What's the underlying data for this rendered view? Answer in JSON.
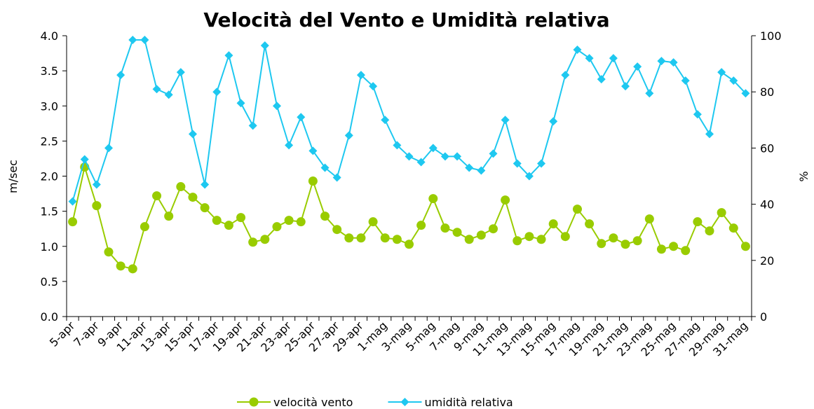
{
  "chart_data": {
    "type": "line",
    "title": "Velocità del Vento e Umidità relativa",
    "y_label": "m/sec",
    "y2_label": "%",
    "categories": [
      "5-apr",
      null,
      "7-apr",
      null,
      "9-apr",
      null,
      "11-apr",
      null,
      "13-apr",
      null,
      "15-apr",
      null,
      "17-apr",
      null,
      "19-apr",
      null,
      "21-apr",
      null,
      "23-apr",
      null,
      "25-apr",
      null,
      "27-apr",
      null,
      "29-apr",
      null,
      "1-mag",
      null,
      "3-mag",
      null,
      "5-mag",
      null,
      "7-mag",
      null,
      "9-mag",
      null,
      "11-mag",
      null,
      "13-mag",
      null,
      "15-mag",
      null,
      "17-mag",
      null,
      "19-mag",
      null,
      "21-mag",
      null,
      "23-mag",
      null,
      "25-mag",
      null,
      "27-mag",
      null,
      "29-mag",
      null,
      "31-mag"
    ],
    "series": [
      {
        "name": "velocità vento",
        "color": "#99cc00",
        "marker": "circle",
        "axis": "y",
        "values": [
          1.35,
          2.13,
          1.58,
          0.92,
          0.72,
          0.68,
          1.28,
          1.72,
          1.43,
          1.85,
          1.7,
          1.55,
          1.37,
          1.3,
          1.41,
          1.06,
          1.1,
          1.28,
          1.37,
          1.35,
          1.93,
          1.43,
          1.24,
          1.12,
          1.12,
          1.35,
          1.12,
          1.1,
          1.03,
          1.3,
          1.68,
          1.26,
          1.2,
          1.1,
          1.16,
          1.25,
          1.66,
          1.08,
          1.14,
          1.1,
          1.32,
          1.14,
          1.53,
          1.32,
          1.04,
          1.12,
          1.03,
          1.08,
          1.39,
          0.96,
          1.0,
          0.94,
          1.35,
          1.22,
          1.48,
          1.26,
          1.0
        ]
      },
      {
        "name": "umidità relativa",
        "color": "#1ec8f0",
        "marker": "diamond",
        "axis": "y2",
        "values": [
          41,
          56,
          47,
          60,
          86,
          98.5,
          98.5,
          81,
          79,
          87,
          65,
          47,
          80,
          93,
          76,
          68,
          96.5,
          75,
          61,
          71,
          59,
          53,
          49.5,
          64.5,
          86,
          82,
          70,
          61,
          57,
          55,
          60,
          57,
          57,
          53,
          52,
          58,
          70,
          54.5,
          50,
          54.5,
          69.5,
          86,
          95,
          92,
          84.5,
          92,
          82,
          89,
          79.5,
          91,
          90.5,
          84,
          72,
          65,
          87,
          84,
          79.5
        ]
      }
    ],
    "ylim": [
      0,
      4
    ],
    "yticks": [
      {
        "value": 0,
        "label": "0.0"
      },
      0.5,
      {
        "value": 1,
        "label": "1.0"
      },
      1.5,
      {
        "value": 2,
        "label": "2.0"
      },
      2.5,
      {
        "value": 3,
        "label": "3.0"
      },
      3.5,
      {
        "value": 4,
        "label": "4.0"
      }
    ],
    "y2lim": [
      0,
      100
    ],
    "y2ticks": [
      0,
      20,
      40,
      60,
      80,
      100
    ],
    "grid": false,
    "legend": "bottom"
  }
}
